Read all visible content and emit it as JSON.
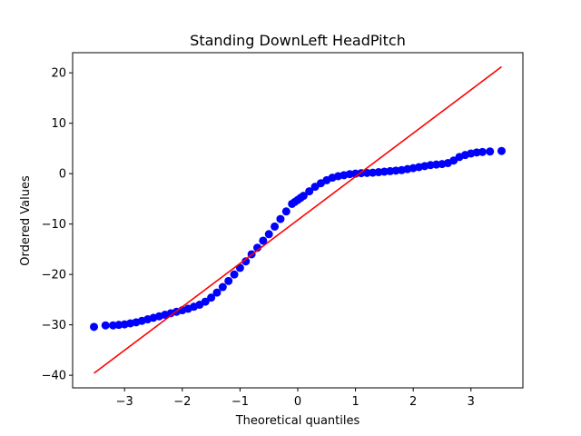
{
  "chart_data": {
    "type": "scatter",
    "title": "Standing DownLeft HeadPitch",
    "xlabel": "Theoretical quantiles",
    "ylabel": "Ordered Values",
    "xlim": [
      -3.9,
      3.9
    ],
    "ylim": [
      -42.5,
      24.0
    ],
    "xticks": [
      -3,
      -2,
      -1,
      0,
      1,
      2,
      3
    ],
    "yticks": [
      -40,
      -30,
      -20,
      -10,
      0,
      10,
      20
    ],
    "grid": false,
    "legend": "none",
    "marker_color": "#0000ff",
    "line_color": "#ff0000",
    "fit_line": {
      "x": [
        -3.53,
        3.53
      ],
      "y": [
        -39.6,
        21.2
      ]
    },
    "points": {
      "x": [
        -3.53,
        -3.33,
        -3.2,
        -3.1,
        -3.0,
        -2.9,
        -2.8,
        -2.7,
        -2.6,
        -2.5,
        -2.4,
        -2.3,
        -2.2,
        -2.1,
        -2.0,
        -1.9,
        -1.8,
        -1.7,
        -1.6,
        -1.5,
        -1.4,
        -1.3,
        -1.2,
        -1.1,
        -1.0,
        -0.9,
        -0.8,
        -0.7,
        -0.6,
        -0.5,
        -0.4,
        -0.3,
        -0.2,
        -0.1,
        -0.05,
        0.0,
        0.05,
        0.1,
        0.2,
        0.3,
        0.4,
        0.5,
        0.6,
        0.7,
        0.8,
        0.9,
        1.0,
        1.1,
        1.2,
        1.3,
        1.4,
        1.5,
        1.6,
        1.7,
        1.8,
        1.9,
        2.0,
        2.1,
        2.2,
        2.3,
        2.4,
        2.5,
        2.6,
        2.7,
        2.8,
        2.9,
        3.0,
        3.1,
        3.2,
        3.33,
        3.53
      ],
      "y": [
        -30.4,
        -30.1,
        -30.1,
        -30.0,
        -29.9,
        -29.7,
        -29.5,
        -29.2,
        -28.9,
        -28.6,
        -28.3,
        -28.0,
        -27.7,
        -27.4,
        -27.1,
        -26.8,
        -26.4,
        -26.0,
        -25.4,
        -24.6,
        -23.6,
        -22.5,
        -21.3,
        -20.0,
        -18.7,
        -17.4,
        -16.0,
        -14.7,
        -13.3,
        -12.0,
        -10.5,
        -9.0,
        -7.5,
        -6.0,
        -5.6,
        -5.2,
        -4.8,
        -4.4,
        -3.5,
        -2.6,
        -1.9,
        -1.3,
        -0.8,
        -0.5,
        -0.3,
        -0.1,
        0.0,
        0.1,
        0.15,
        0.2,
        0.3,
        0.4,
        0.5,
        0.6,
        0.7,
        0.9,
        1.1,
        1.3,
        1.5,
        1.7,
        1.8,
        1.9,
        2.1,
        2.6,
        3.3,
        3.7,
        4.0,
        4.2,
        4.3,
        4.4,
        4.5
      ]
    }
  }
}
